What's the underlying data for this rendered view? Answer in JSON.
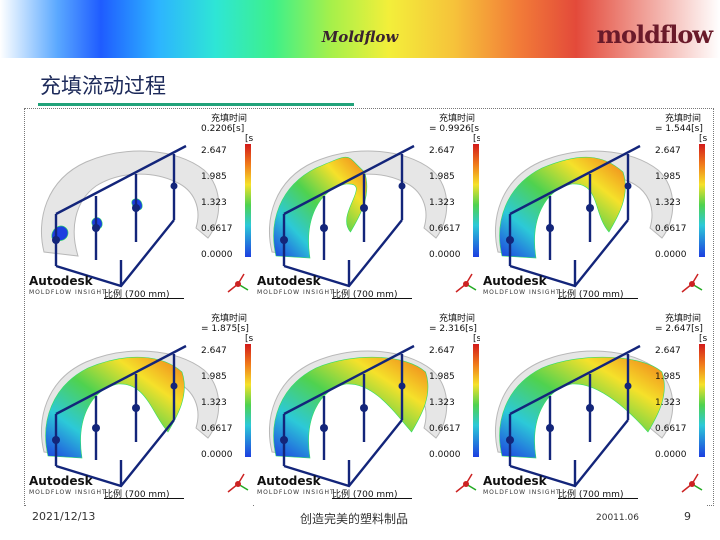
{
  "header": {
    "center_brand": "Moldflow",
    "logo_text": "moldflow"
  },
  "slide": {
    "title": "充填流动过程"
  },
  "legend_common": {
    "title": "充填时间",
    "unit": "[s]",
    "ticks": [
      "2.647",
      "1.985",
      "1.323",
      "0.6617",
      "0.0000"
    ],
    "autodesk": "Autodesk",
    "autodesk_sub": "MOLDFLOW INSIGHT",
    "scale_label": "比例 (700 mm)"
  },
  "panels": [
    {
      "time": "0.2206[s]"
    },
    {
      "time": "= 0.9926[s]"
    },
    {
      "time": "= 1.544[s]"
    },
    {
      "time": "= 1.875[s]"
    },
    {
      "time": "= 2.316[s]"
    },
    {
      "time": "= 2.647[s]"
    }
  ],
  "footer": {
    "date": "2021/12/13",
    "slogan": "创造完美的塑料制品",
    "code": "20011.06",
    "page_number": "9"
  }
}
